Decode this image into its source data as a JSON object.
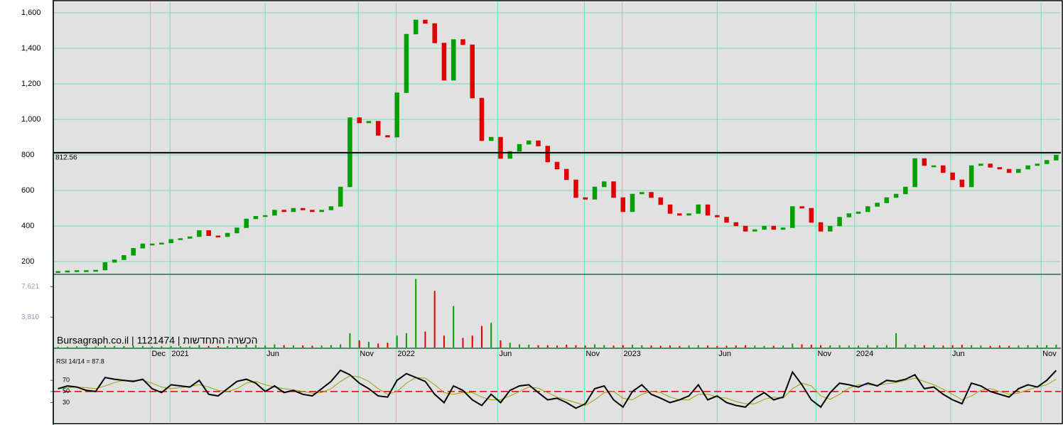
{
  "chart_data": [
    {
      "type": "candlestick",
      "up_color": "#00a000",
      "down_color": "#e00000",
      "grid": true,
      "grid_color": "#6fe0b0",
      "xlim": [
        -0.5,
        106.5
      ],
      "xticks": [
        {
          "value": 9.8,
          "label": "Dec"
        },
        {
          "value": 11.9,
          "label": "2021"
        },
        {
          "value": 22,
          "label": "Jun"
        },
        {
          "value": 31.9,
          "label": "Nov"
        },
        {
          "value": 35.9,
          "label": "2022"
        },
        {
          "value": 46.7,
          "label": "Jun"
        },
        {
          "value": 55.9,
          "label": "Nov"
        },
        {
          "value": 59.9,
          "label": "2023"
        },
        {
          "value": 70,
          "label": "Jun"
        },
        {
          "value": 80.5,
          "label": "Nov"
        },
        {
          "value": 84.6,
          "label": "2024"
        },
        {
          "value": 94.8,
          "label": "Jun"
        },
        {
          "value": 104.4,
          "label": "Nov"
        }
      ],
      "ylim": [
        128,
        1660
      ],
      "yticks": [
        200,
        400,
        600,
        800,
        {
          "value": 1000,
          "label": "1,000"
        },
        {
          "value": 1200,
          "label": "1,200"
        },
        {
          "value": 1400,
          "label": "1,400"
        },
        {
          "value": 1600,
          "label": "1,600"
        }
      ],
      "reference_line": 812.56,
      "values": [
        145,
        148,
        150,
        150,
        152,
        195,
        210,
        235,
        275,
        300,
        300,
        305,
        325,
        330,
        340,
        375,
        345,
        340,
        360,
        390,
        440,
        455,
        460,
        490,
        480,
        500,
        490,
        480,
        490,
        510,
        620,
        1010,
        980,
        990,
        910,
        900,
        1150,
        1480,
        1560,
        1540,
        1430,
        1220,
        1450,
        1420,
        1120,
        880,
        900,
        780,
        820,
        860,
        880,
        850,
        760,
        720,
        660,
        560,
        550,
        620,
        650,
        560,
        480,
        580,
        590,
        560,
        520,
        470,
        460,
        470,
        520,
        460,
        450,
        420,
        400,
        370,
        380,
        400,
        380,
        390,
        510,
        500,
        420,
        370,
        400,
        450,
        470,
        480,
        510,
        530,
        560,
        580,
        620,
        780,
        740,
        740,
        700,
        660,
        620,
        740,
        750,
        730,
        720,
        700,
        720,
        740,
        750,
        770,
        800
      ]
    },
    {
      "type": "bar",
      "annotation": "Bursagraph.co.il | 1121474 | הכשרה התחדשות",
      "ylim": [
        0,
        9000
      ],
      "yticks": [
        {
          "value": 3810,
          "label": "3,810"
        },
        {
          "value": 7621,
          "label": "7,621"
        }
      ],
      "values": [
        100,
        120,
        150,
        100,
        130,
        250,
        200,
        180,
        220,
        200,
        150,
        160,
        180,
        170,
        150,
        300,
        200,
        180,
        190,
        250,
        350,
        300,
        250,
        400,
        300,
        280,
        260,
        240,
        250,
        300,
        400,
        1800,
        900,
        700,
        500,
        600,
        1500,
        1800,
        8600,
        2000,
        7100,
        1500,
        5200,
        1200,
        1500,
        2700,
        3100,
        900,
        600,
        400,
        350,
        300,
        300,
        250,
        350,
        300,
        250,
        400,
        300,
        250,
        300,
        350,
        300,
        250,
        220,
        250,
        200,
        250,
        300,
        250,
        200,
        220,
        250,
        280,
        250,
        200,
        220,
        250,
        500,
        400,
        350,
        300,
        280,
        300,
        250,
        250,
        300,
        280,
        300,
        1800,
        400,
        350,
        300,
        280,
        250,
        300,
        350,
        300,
        250,
        200,
        250,
        220,
        250,
        300,
        280,
        300,
        350
      ]
    },
    {
      "type": "line",
      "title": "RSI 14/14 = 87.8",
      "ylim": [
        -5,
        125
      ],
      "yticks": [
        30,
        50,
        70
      ],
      "midline": 50,
      "midline_color": "#e00000",
      "series": [
        {
          "color": "#000000",
          "values": [
            55,
            60,
            58,
            52,
            50,
            75,
            72,
            70,
            68,
            72,
            55,
            48,
            62,
            60,
            58,
            70,
            45,
            42,
            55,
            68,
            72,
            65,
            50,
            60,
            48,
            52,
            45,
            42,
            55,
            68,
            88,
            80,
            65,
            55,
            42,
            40,
            70,
            82,
            75,
            68,
            45,
            30,
            60,
            52,
            35,
            25,
            45,
            30,
            52,
            60,
            62,
            48,
            35,
            38,
            30,
            20,
            28,
            55,
            60,
            35,
            22,
            50,
            62,
            45,
            38,
            30,
            35,
            42,
            62,
            35,
            42,
            30,
            25,
            22,
            38,
            48,
            35,
            40,
            85,
            62,
            35,
            22,
            48,
            65,
            62,
            58,
            65,
            60,
            70,
            68,
            72,
            80,
            55,
            58,
            45,
            35,
            28,
            65,
            60,
            50,
            45,
            40,
            55,
            62,
            58,
            70,
            87.8
          ]
        },
        {
          "color": "#a0a000",
          "values": [
            55,
            57,
            58,
            57,
            55,
            60,
            66,
            70,
            70,
            70,
            65,
            58,
            55,
            57,
            59,
            62,
            58,
            52,
            50,
            55,
            65,
            68,
            62,
            58,
            55,
            53,
            50,
            47,
            48,
            55,
            68,
            78,
            76,
            68,
            55,
            45,
            50,
            65,
            75,
            74,
            62,
            48,
            45,
            48,
            48,
            40,
            35,
            35,
            42,
            50,
            58,
            56,
            48,
            40,
            35,
            30,
            25,
            35,
            48,
            50,
            38,
            35,
            45,
            50,
            48,
            40,
            35,
            35,
            45,
            45,
            40,
            38,
            32,
            28,
            28,
            36,
            40,
            38,
            55,
            65,
            60,
            42,
            36,
            45,
            56,
            62,
            62,
            61,
            64,
            66,
            70,
            74,
            68,
            62,
            54,
            45,
            35,
            42,
            52,
            55,
            50,
            45,
            47,
            53,
            58,
            62,
            72
          ]
        }
      ]
    }
  ]
}
